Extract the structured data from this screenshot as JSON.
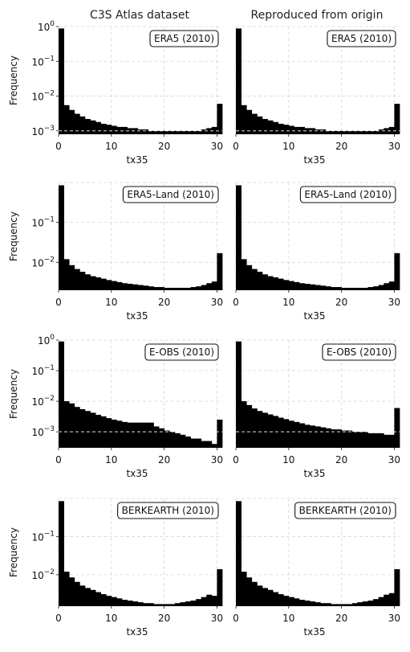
{
  "figure": {
    "column_titles": [
      "C3S Atlas dataset",
      "Reproduced from origin"
    ],
    "ylabel": "Frequency",
    "xlabel": "tx35",
    "xticks": [
      0,
      10,
      20,
      30
    ],
    "bar_color": "#000000"
  },
  "chart_data": [
    {
      "type": "bar",
      "row": 0,
      "col": 0,
      "title": "ERA5 (2010)",
      "xlabel": "tx35",
      "ylabel": "Frequency",
      "yscale": "log",
      "ylim": [
        0.0008,
        1.0
      ],
      "yticks": [
        {
          "v": 1,
          "t": "10",
          "e": "0"
        },
        {
          "v": 0.1,
          "t": "10",
          "e": "−1"
        },
        {
          "v": 0.01,
          "t": "10",
          "e": "−2"
        },
        {
          "v": 0.001,
          "t": "10",
          "e": "−3"
        }
      ],
      "xlim": [
        0,
        31
      ],
      "bin_width": 1,
      "values": [
        0.88,
        0.0055,
        0.004,
        0.0031,
        0.0026,
        0.0022,
        0.002,
        0.0018,
        0.0016,
        0.0015,
        0.0014,
        0.0013,
        0.0013,
        0.0012,
        0.0012,
        0.0011,
        0.0011,
        0.001,
        0.001,
        0.001,
        0.001,
        0.001,
        0.001,
        0.001,
        0.001,
        0.001,
        0.001,
        0.0011,
        0.0012,
        0.0013,
        0.006
      ],
      "legend": "top-right",
      "grid": true
    },
    {
      "type": "bar",
      "row": 0,
      "col": 1,
      "title": "ERA5 (2010)",
      "xlabel": "tx35",
      "yscale": "log",
      "ylim": [
        0.0008,
        1.0
      ],
      "xlim": [
        0,
        31
      ],
      "bin_width": 1,
      "values": [
        0.88,
        0.0055,
        0.004,
        0.0031,
        0.0026,
        0.0022,
        0.002,
        0.0018,
        0.0016,
        0.0015,
        0.0014,
        0.0013,
        0.0013,
        0.0012,
        0.0012,
        0.0011,
        0.0011,
        0.001,
        0.001,
        0.001,
        0.001,
        0.001,
        0.001,
        0.001,
        0.001,
        0.001,
        0.001,
        0.0011,
        0.0012,
        0.0013,
        0.006
      ],
      "legend": "top-right",
      "grid": true
    },
    {
      "type": "bar",
      "row": 1,
      "col": 0,
      "title": "ERA5-Land (2010)",
      "xlabel": "tx35",
      "ylabel": "Frequency",
      "yscale": "log",
      "ylim": [
        0.002,
        1.0
      ],
      "yticks": [
        {
          "v": 0.1,
          "t": "10",
          "e": "−1"
        },
        {
          "v": 0.01,
          "t": "10",
          "e": "−2"
        }
      ],
      "xlim": [
        0,
        31
      ],
      "bin_width": 1,
      "values": [
        0.85,
        0.012,
        0.0085,
        0.0068,
        0.0058,
        0.005,
        0.0045,
        0.0042,
        0.0039,
        0.0036,
        0.0034,
        0.0032,
        0.003,
        0.0029,
        0.0028,
        0.0027,
        0.0026,
        0.0025,
        0.0024,
        0.0024,
        0.0023,
        0.0023,
        0.0023,
        0.0023,
        0.0023,
        0.0024,
        0.0025,
        0.0027,
        0.003,
        0.0033,
        0.017
      ],
      "legend": "top-right",
      "grid": true
    },
    {
      "type": "bar",
      "row": 1,
      "col": 1,
      "title": "ERA5-Land (2010)",
      "xlabel": "tx35",
      "yscale": "log",
      "ylim": [
        0.002,
        1.0
      ],
      "xlim": [
        0,
        31
      ],
      "bin_width": 1,
      "values": [
        0.85,
        0.012,
        0.0085,
        0.0068,
        0.0058,
        0.005,
        0.0045,
        0.0042,
        0.0039,
        0.0036,
        0.0034,
        0.0032,
        0.003,
        0.0029,
        0.0028,
        0.0027,
        0.0026,
        0.0025,
        0.0024,
        0.0024,
        0.0023,
        0.0023,
        0.0023,
        0.0023,
        0.0023,
        0.0024,
        0.0025,
        0.0027,
        0.003,
        0.0033,
        0.017
      ],
      "legend": "top-right",
      "grid": true
    },
    {
      "type": "bar",
      "row": 2,
      "col": 0,
      "title": "E-OBS (2010)",
      "xlabel": "tx35",
      "ylabel": "Frequency",
      "yscale": "log",
      "ylim": [
        0.0003,
        1.0
      ],
      "yticks": [
        {
          "v": 1,
          "t": "10",
          "e": "0"
        },
        {
          "v": 0.1,
          "t": "10",
          "e": "−1"
        },
        {
          "v": 0.01,
          "t": "10",
          "e": "−2"
        },
        {
          "v": 0.001,
          "t": "10",
          "e": "−3"
        }
      ],
      "xlim": [
        0,
        31
      ],
      "bin_width": 1,
      "values": [
        0.9,
        0.01,
        0.0085,
        0.0065,
        0.0055,
        0.0048,
        0.0042,
        0.0036,
        0.0032,
        0.0028,
        0.0025,
        0.0023,
        0.0021,
        0.002,
        0.002,
        0.002,
        0.002,
        0.002,
        0.0015,
        0.0013,
        0.0011,
        0.001,
        0.0009,
        0.0008,
        0.0007,
        0.0006,
        0.0006,
        0.0005,
        0.0005,
        0.0004,
        0.0025
      ],
      "legend": "top-right",
      "grid": true
    },
    {
      "type": "bar",
      "row": 2,
      "col": 1,
      "title": "E-OBS (2010)",
      "xlabel": "tx35",
      "yscale": "log",
      "ylim": [
        0.0003,
        1.0
      ],
      "xlim": [
        0,
        31
      ],
      "bin_width": 1,
      "values": [
        0.9,
        0.01,
        0.0075,
        0.0058,
        0.0048,
        0.0042,
        0.0037,
        0.0033,
        0.0029,
        0.0026,
        0.0023,
        0.0021,
        0.0019,
        0.0017,
        0.0016,
        0.0015,
        0.0014,
        0.0013,
        0.0012,
        0.0012,
        0.0011,
        0.0011,
        0.001,
        0.001,
        0.001,
        0.0009,
        0.0009,
        0.0009,
        0.0008,
        0.0008,
        0.006
      ],
      "legend": "top-right",
      "grid": true
    },
    {
      "type": "bar",
      "row": 3,
      "col": 0,
      "title": "BERKEARTH (2010)",
      "xlabel": "tx35",
      "ylabel": "Frequency",
      "yscale": "log",
      "ylim": [
        0.0015,
        1.0
      ],
      "yticks": [
        {
          "v": 0.1,
          "t": "10",
          "e": "−1"
        },
        {
          "v": 0.01,
          "t": "10",
          "e": "−2"
        }
      ],
      "xlim": [
        0,
        31
      ],
      "bin_width": 1,
      "values": [
        0.85,
        0.012,
        0.0085,
        0.0065,
        0.0052,
        0.0045,
        0.004,
        0.0035,
        0.0031,
        0.0028,
        0.0026,
        0.0024,
        0.0022,
        0.0021,
        0.002,
        0.0019,
        0.0018,
        0.0018,
        0.0017,
        0.0017,
        0.0017,
        0.0017,
        0.0018,
        0.0019,
        0.002,
        0.0021,
        0.0023,
        0.0026,
        0.003,
        0.0028,
        0.014
      ],
      "legend": "top-right",
      "grid": true
    },
    {
      "type": "bar",
      "row": 3,
      "col": 1,
      "title": "BERKEARTH (2010)",
      "xlabel": "tx35",
      "yscale": "log",
      "ylim": [
        0.0015,
        1.0
      ],
      "xlim": [
        0,
        31
      ],
      "bin_width": 1,
      "values": [
        0.85,
        0.012,
        0.0085,
        0.0065,
        0.0052,
        0.0045,
        0.004,
        0.0035,
        0.0031,
        0.0028,
        0.0026,
        0.0024,
        0.0022,
        0.0021,
        0.002,
        0.0019,
        0.0018,
        0.0018,
        0.0017,
        0.0017,
        0.0017,
        0.0017,
        0.0018,
        0.0019,
        0.002,
        0.0021,
        0.0023,
        0.0026,
        0.003,
        0.0033,
        0.014
      ],
      "legend": "top-right",
      "grid": true
    }
  ]
}
